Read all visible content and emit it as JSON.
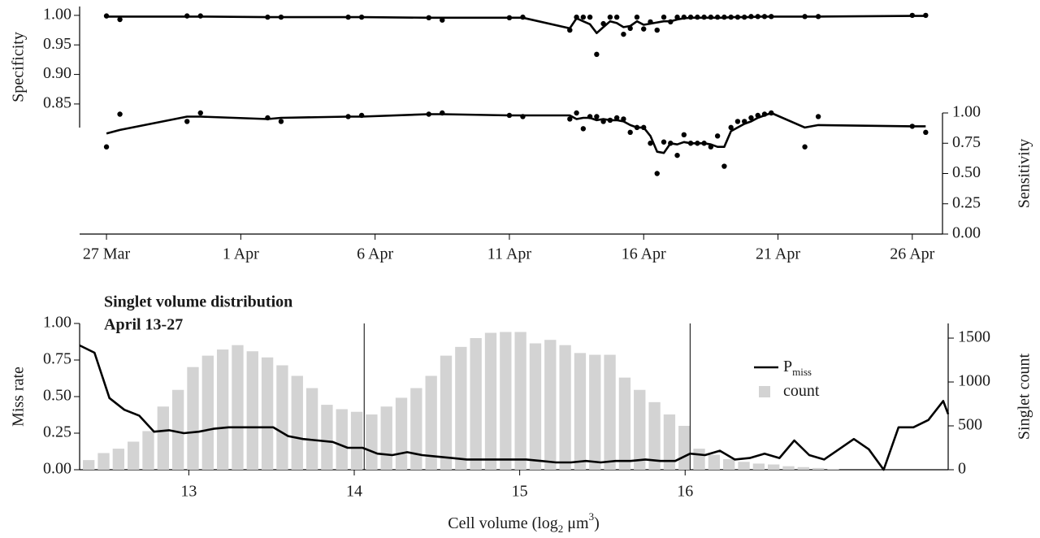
{
  "chart_data": [
    {
      "type": "line",
      "x": [
        "03-27T00",
        "03-27T12",
        "03-30T00",
        "03-30T12",
        "04-02T00",
        "04-02T12",
        "04-05T00",
        "04-05T12",
        "04-08T00",
        "04-08T12",
        "04-11T00",
        "04-11T12",
        "04-13T06",
        "04-13T12",
        "04-13T18",
        "04-14T00",
        "04-14T06",
        "04-14T12",
        "04-14T18",
        "04-15T00",
        "04-15T06",
        "04-15T12",
        "04-15T18",
        "04-16T00",
        "04-16T06",
        "04-16T12",
        "04-16T18",
        "04-17T00",
        "04-17T06",
        "04-17T12",
        "04-17T18",
        "04-18T00",
        "04-18T06",
        "04-18T12",
        "04-18T18",
        "04-19T00",
        "04-19T06",
        "04-19T12",
        "04-19T18",
        "04-20T00",
        "04-20T06",
        "04-20T12",
        "04-20T18",
        "04-22T00",
        "04-22T12",
        "04-26T00",
        "04-26T12"
      ],
      "xlim": [
        "03-26T00",
        "04-27T03"
      ],
      "xticks": [
        {
          "value": "03-27T00",
          "label": "27 Mar"
        },
        {
          "value": "04-01T00",
          "label": "1 Apr"
        },
        {
          "value": "04-06T00",
          "label": "6 Apr"
        },
        {
          "value": "04-11T00",
          "label": "11 Apr"
        },
        {
          "value": "04-16T00",
          "label": "16 Apr"
        },
        {
          "value": "04-21T00",
          "label": "21 Apr"
        },
        {
          "value": "04-26T00",
          "label": "26 Apr"
        }
      ],
      "ylabel": "Specificity",
      "ylim": [
        0.81,
        1.015
      ],
      "yticks": [
        {
          "value": 0.85,
          "label": "0.85"
        },
        {
          "value": 0.9,
          "label": "0.90"
        },
        {
          "value": 0.95,
          "label": "0.95"
        },
        {
          "value": 1.0,
          "label": "1.00"
        }
      ],
      "y2label": "Sensitivity",
      "y2lim": [
        0,
        1
      ],
      "y2ticks": [
        {
          "value": 0,
          "label": "0.00"
        },
        {
          "value": 0.25,
          "label": "0.25"
        },
        {
          "value": 0.5,
          "label": "0.50"
        },
        {
          "value": 0.75,
          "label": "0.75"
        },
        {
          "value": 1.0,
          "label": "1.00"
        }
      ],
      "series": [
        {
          "color": "#000000",
          "values": [
            0.999,
            0.993,
            0.999,
            0.999,
            0.997,
            0.997,
            0.997,
            0.997,
            0.996,
            0.992,
            0.996,
            0.997,
            0.975,
            0.997,
            0.997,
            0.997,
            0.934,
            0.986,
            0.997,
            0.997,
            0.968,
            0.978,
            0.997,
            0.977,
            0.989,
            0.975,
            0.997,
            0.989,
            0.997,
            0.997,
            0.997,
            0.997,
            0.997,
            0.997,
            0.997,
            0.997,
            0.997,
            0.997,
            0.997,
            0.998,
            0.998,
            0.998,
            0.998,
            0.998,
            0.998,
            1.0,
            1.0
          ],
          "fit": [
            0.998,
            0.998,
            0.998,
            0.998,
            0.997,
            0.997,
            0.997,
            0.997,
            0.996,
            0.996,
            0.996,
            0.996,
            0.978,
            0.995,
            0.99,
            0.985,
            0.97,
            0.98,
            0.99,
            0.987,
            0.98,
            0.982,
            0.99,
            0.984,
            0.986,
            0.988,
            0.99,
            0.99,
            0.993,
            0.995,
            0.996,
            0.996,
            0.996,
            0.996,
            0.996,
            0.996,
            0.997,
            0.997,
            0.997,
            0.997,
            0.998,
            0.998,
            0.998,
            0.998,
            0.998,
            0.999,
            0.999
          ]
        },
        {
          "color": "#000000",
          "axis": "y2",
          "values": [
            0.72,
            0.99,
            0.93,
            1.0,
            0.96,
            0.93,
            0.97,
            0.98,
            0.99,
            1.0,
            0.98,
            0.97,
            0.95,
            1.0,
            0.87,
            0.97,
            0.97,
            0.93,
            0.94,
            0.96,
            0.95,
            0.84,
            0.88,
            0.88,
            0.75,
            0.5,
            0.76,
            0.75,
            0.65,
            0.82,
            0.75,
            0.75,
            0.75,
            0.72,
            0.81,
            0.56,
            0.88,
            0.93,
            0.93,
            0.96,
            0.98,
            0.99,
            1.0,
            0.72,
            0.97,
            0.89,
            0.84
          ],
          "fit": [
            0.83,
            0.86,
            0.97,
            0.97,
            0.95,
            0.96,
            0.97,
            0.97,
            0.99,
            0.99,
            0.98,
            0.98,
            0.98,
            0.95,
            0.96,
            0.96,
            0.94,
            0.95,
            0.94,
            0.94,
            0.93,
            0.9,
            0.88,
            0.88,
            0.81,
            0.68,
            0.67,
            0.75,
            0.74,
            0.76,
            0.75,
            0.75,
            0.75,
            0.74,
            0.72,
            0.72,
            0.85,
            0.88,
            0.91,
            0.93,
            0.96,
            0.98,
            1.0,
            0.88,
            0.9,
            0.89,
            0.89
          ]
        }
      ]
    },
    {
      "type": "histogram",
      "title": "Singlet volume distribution",
      "subtitle": "April 13-27",
      "xlabel": [
        {
          "text": "Cell volume (log"
        },
        {
          "text": "2",
          "shift": "sub"
        },
        {
          "text": " μm"
        },
        {
          "text": "3",
          "shift": "super"
        },
        {
          "text": ")"
        }
      ],
      "xlim": [
        12.34,
        17.59
      ],
      "xticks": [
        13,
        14,
        15,
        16
      ],
      "vlines": [
        14.06,
        16.03
      ],
      "ylabel": "Miss rate",
      "ylim": [
        0,
        1
      ],
      "yticks": [
        {
          "value": 0,
          "label": "0.00"
        },
        {
          "value": 0.25,
          "label": "0.25"
        },
        {
          "value": 0.5,
          "label": "0.50"
        },
        {
          "value": 0.75,
          "label": "0.75"
        },
        {
          "value": 1.0,
          "label": "1.00"
        }
      ],
      "y2label": "Singlet count",
      "y2lim": [
        0,
        1667
      ],
      "y2ticks": [
        0,
        500,
        1000,
        1500
      ],
      "series": [
        {
          "name": "P",
          "name_sub": "miss",
          "type": "line",
          "color": "#000000",
          "x": [
            12.34,
            12.43,
            12.52,
            12.61,
            12.7,
            12.79,
            12.88,
            12.97,
            13.06,
            13.15,
            13.24,
            13.33,
            13.42,
            13.51,
            13.6,
            13.69,
            13.78,
            13.87,
            13.96,
            14.05,
            14.14,
            14.23,
            14.32,
            14.41,
            14.5,
            14.59,
            14.68,
            14.77,
            14.86,
            14.95,
            15.04,
            15.13,
            15.22,
            15.31,
            15.4,
            15.49,
            15.58,
            15.67,
            15.76,
            15.85,
            15.94,
            16.03,
            16.12,
            16.21,
            16.3,
            16.39,
            16.48,
            16.57,
            16.66,
            16.75,
            16.84,
            16.93,
            17.02,
            17.11,
            17.2,
            17.29,
            17.38,
            17.47,
            17.56,
            17.59
          ],
          "values": [
            0.85,
            0.8,
            0.49,
            0.41,
            0.37,
            0.26,
            0.27,
            0.25,
            0.26,
            0.28,
            0.29,
            0.29,
            0.29,
            0.29,
            0.23,
            0.21,
            0.2,
            0.19,
            0.15,
            0.15,
            0.11,
            0.1,
            0.12,
            0.1,
            0.09,
            0.08,
            0.07,
            0.07,
            0.07,
            0.07,
            0.07,
            0.06,
            0.05,
            0.05,
            0.06,
            0.05,
            0.06,
            0.06,
            0.07,
            0.06,
            0.06,
            0.11,
            0.1,
            0.13,
            0.07,
            0.08,
            0.11,
            0.08,
            0.2,
            0.1,
            0.07,
            0.14,
            0.21,
            0.14,
            0,
            0.29,
            0.29,
            0.34,
            0.47,
            0.38
          ]
        },
        {
          "name": "count",
          "type": "bar",
          "axis": "y2",
          "color": "#d3d3d3",
          "bins": [
            12.35,
            12.44,
            12.53,
            12.62,
            12.71,
            12.8,
            12.89,
            12.98,
            13.07,
            13.16,
            13.25,
            13.34,
            13.43,
            13.52,
            13.61,
            13.7,
            13.79,
            13.88,
            13.97,
            14.06,
            14.15,
            14.24,
            14.33,
            14.42,
            14.51,
            14.6,
            14.69,
            14.78,
            14.87,
            14.96,
            15.05,
            15.14,
            15.23,
            15.32,
            15.41,
            15.5,
            15.59,
            15.68,
            15.77,
            15.86,
            15.95,
            16.04,
            16.13,
            16.22,
            16.31,
            16.4,
            16.49,
            16.58,
            16.67,
            16.76,
            16.85,
            16.94
          ],
          "values": [
            110,
            190,
            240,
            320,
            440,
            720,
            910,
            1170,
            1300,
            1370,
            1420,
            1350,
            1280,
            1190,
            1070,
            930,
            740,
            690,
            660,
            630,
            720,
            820,
            930,
            1070,
            1300,
            1400,
            1500,
            1560,
            1570,
            1570,
            1440,
            1480,
            1420,
            1330,
            1310,
            1310,
            1050,
            910,
            770,
            630,
            500,
            240,
            170,
            120,
            90,
            70,
            60,
            40,
            30,
            20,
            10
          ]
        }
      ]
    }
  ]
}
